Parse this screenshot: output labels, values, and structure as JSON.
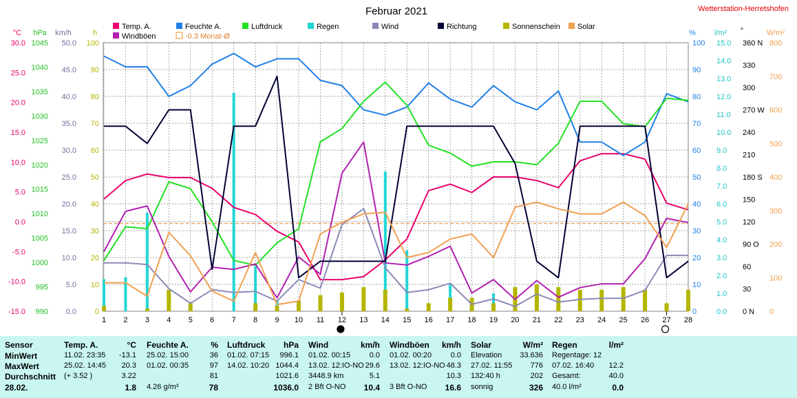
{
  "title": "Februar 2021",
  "station": "Wetterstation-Herretshofen",
  "legend": [
    {
      "label": "Temp. A.",
      "color": "#e8006c"
    },
    {
      "label": "Feuchte A.",
      "color": "#1f7fe6"
    },
    {
      "label": "Luftdruck",
      "color": "#22e022"
    },
    {
      "label": "Regen",
      "color": "#22d5d5"
    },
    {
      "label": "Wind",
      "color": "#8a8ab8"
    },
    {
      "label": "Richtung",
      "color": "#000033"
    },
    {
      "label": "Sonnenschein",
      "color": "#b5b500"
    },
    {
      "label": "Solar",
      "color": "#f0a050"
    },
    {
      "label": "Windböen",
      "color": "#b020b0"
    },
    {
      "label": "-0.3 Monat-Ø",
      "color": "#f0a050"
    }
  ],
  "units": {
    "temp": "°C",
    "pressure": "hPa",
    "wind": "km/h",
    "sun": "h",
    "humidity": "%",
    "rain": "l/m²",
    "direction": "°",
    "solar": "W/m²"
  },
  "chart_data": {
    "type": "line",
    "x": [
      1,
      2,
      3,
      4,
      5,
      6,
      7,
      8,
      9,
      10,
      11,
      12,
      13,
      14,
      15,
      16,
      17,
      18,
      19,
      20,
      21,
      22,
      23,
      24,
      25,
      26,
      27,
      28
    ],
    "axes": {
      "temp": {
        "range": [
          -15,
          30
        ],
        "ticks": [
          "30.0",
          "25.0",
          "20.0",
          "15.0",
          "10.0",
          "5.0",
          "0.0",
          "-5.0",
          "-10.0",
          "-15.0"
        ]
      },
      "pressure": {
        "range": [
          990,
          1045
        ],
        "ticks": [
          "1045",
          "1040",
          "1035",
          "1030",
          "1025",
          "1020",
          "1015",
          "1010",
          "1005",
          "1000",
          "995",
          "990"
        ]
      },
      "wind": {
        "range": [
          0,
          50
        ],
        "ticks": [
          "50.0",
          "45.0",
          "40.0",
          "35.0",
          "30.0",
          "25.0",
          "20.0",
          "15.0",
          "10.0",
          "5.0",
          "0.0"
        ]
      },
      "sun": {
        "range": [
          0,
          100
        ],
        "ticks": [
          "100",
          "90",
          "80",
          "70",
          "60",
          "50",
          "40",
          "30",
          "20",
          "10",
          "0"
        ]
      },
      "humidity": {
        "range": [
          0,
          100
        ],
        "ticks": [
          "100",
          "90",
          "80",
          "70",
          "60",
          "50",
          "40",
          "30",
          "20",
          "10",
          "0"
        ]
      },
      "rain": {
        "range": [
          0,
          15
        ],
        "ticks": [
          "15.0",
          "14.0",
          "13.0",
          "12.0",
          "11.0",
          "10.0",
          "9.0",
          "8.0",
          "7.0",
          "6.0",
          "5.0",
          "4.0",
          "3.0",
          "2.0",
          "1.0",
          "0.0"
        ]
      },
      "direction": {
        "range": [
          0,
          360
        ],
        "ticks": [
          "360 N",
          "330",
          "300",
          "270 W",
          "240",
          "210",
          "180 S",
          "150",
          "120",
          "90 O",
          "60",
          "30",
          "0 N"
        ]
      },
      "solar": {
        "range": [
          0,
          800
        ],
        "ticks": [
          "800",
          "700",
          "600",
          "500",
          "400",
          "300",
          "200",
          "100",
          "0"
        ]
      }
    },
    "series": [
      {
        "name": "Temp. A.",
        "axis": "temp",
        "color": "#e8006c",
        "values": [
          3.8,
          6.9,
          8.0,
          7.4,
          7.4,
          5.6,
          2.4,
          1.2,
          -1.6,
          -3.4,
          -9.7,
          -9.7,
          -9.2,
          -6.4,
          -2.9,
          5.2,
          6.3,
          4.9,
          7.5,
          7.5,
          6.9,
          5.7,
          10.2,
          11.4,
          11.4,
          10.5,
          3.1,
          2.0
        ]
      },
      {
        "name": "Feuchte A.",
        "axis": "humidity",
        "color": "#1f7fe6",
        "values": [
          95,
          91,
          91,
          80,
          84,
          92,
          96,
          91,
          94,
          94,
          86,
          84,
          75,
          73,
          76,
          85,
          79,
          76,
          84,
          78,
          75,
          82,
          63,
          63,
          58,
          63,
          81,
          78
        ]
      },
      {
        "name": "Luftdruck",
        "axis": "pressure",
        "color": "#22e022",
        "values": [
          1000.4,
          1007.3,
          1006.9,
          1016.5,
          1015.1,
          1008.3,
          1000.4,
          999.4,
          1004.0,
          1006.9,
          1024.7,
          1027.4,
          1033.0,
          1036.9,
          1032.2,
          1024.0,
          1022.4,
          1019.7,
          1020.6,
          1020.6,
          1020.0,
          1024.4,
          1033.0,
          1033.0,
          1028.4,
          1027.8,
          1033.6,
          1033.2
        ]
      },
      {
        "name": "Wind",
        "axis": "wind",
        "color": "#8a8ab8",
        "values": [
          9.0,
          9.0,
          8.7,
          4.2,
          1.5,
          4.0,
          3.5,
          3.7,
          1.9,
          5.9,
          4.3,
          16.1,
          19.1,
          8.1,
          3.5,
          4.0,
          5.2,
          1.3,
          2.3,
          0.9,
          3.2,
          1.7,
          2.2,
          2.4,
          2.4,
          3.9,
          10.4,
          10.4
        ]
      },
      {
        "name": "Windböen",
        "axis": "wind",
        "color": "#b020b0",
        "values": [
          11.1,
          18.6,
          19.6,
          10.2,
          3.6,
          8.2,
          7.8,
          8.8,
          2.5,
          10.1,
          6.9,
          25.7,
          31.5,
          9.0,
          8.6,
          10.2,
          12.1,
          3.4,
          5.9,
          2.2,
          5.7,
          2.6,
          4.4,
          5.1,
          5.1,
          9.8,
          17.3,
          16.5
        ]
      },
      {
        "name": "Richtung",
        "axis": "direction",
        "color": "#000033",
        "values": [
          248,
          248,
          225,
          270,
          270,
          56,
          248,
          248,
          315,
          45,
          67,
          67,
          67,
          67,
          248,
          248,
          248,
          248,
          248,
          198,
          67,
          45,
          248,
          248,
          248,
          248,
          45,
          67
        ]
      },
      {
        "name": "Solar",
        "axis": "solar",
        "color": "#f0a050",
        "values": [
          85,
          85,
          45,
          235,
          165,
          60,
          30,
          175,
          20,
          30,
          230,
          265,
          290,
          295,
          160,
          175,
          215,
          230,
          160,
          310,
          325,
          305,
          290,
          290,
          325,
          285,
          190,
          320
        ]
      },
      {
        "name": "Regen",
        "axis": "rain",
        "type": "bar",
        "color": "#22d5d5",
        "values": [
          1.8,
          1.9,
          5.5,
          0,
          0.3,
          0,
          12.2,
          2.5,
          0.6,
          0.6,
          0,
          0.7,
          0,
          7.8,
          3.4,
          0,
          1.5,
          0,
          1.0,
          0,
          0,
          0,
          0,
          0,
          0,
          0.4,
          0,
          0
        ]
      },
      {
        "name": "Sonnenschein",
        "axis": "sun",
        "type": "bar",
        "color": "#b5b500",
        "values": [
          2,
          0,
          1,
          8,
          3,
          0,
          0,
          3,
          2,
          4,
          6,
          7,
          9,
          8,
          1,
          3,
          5,
          5,
          3,
          9,
          10,
          9,
          8,
          8,
          9,
          8,
          3,
          8
        ]
      }
    ],
    "month_avg_line": {
      "axis": "temp",
      "value": -0.3,
      "color": "#f0a050",
      "label": "-0.3 Monat-Ø"
    },
    "moon_markers": [
      {
        "x": 12,
        "phase": "new"
      },
      {
        "x": 27,
        "phase": "full"
      }
    ]
  },
  "stats": {
    "sensor": {
      "header": "Sensor",
      "rows": [
        "MinWert",
        "MaxWert",
        "Durchschnitt",
        "28.02."
      ]
    },
    "temp": {
      "header": "Temp. A.",
      "unit": "°C",
      "rows": [
        [
          "11.02.  23:35",
          "-13.1"
        ],
        [
          "25.02.  14:45",
          "20.3"
        ],
        [
          "(+ 3.52 )",
          "3.22"
        ],
        [
          "",
          "1.8"
        ]
      ]
    },
    "humidity": {
      "header": "Feuchte A.",
      "unit": "%",
      "rows": [
        [
          "25.02.  15:00",
          "36"
        ],
        [
          "01.02.  00:35",
          "97"
        ],
        [
          "",
          "81"
        ],
        [
          "4.26 g/m³",
          "78"
        ]
      ]
    },
    "pressure": {
      "header": "Luftdruck",
      "unit": "hPa",
      "rows": [
        [
          "01.02.  07:15",
          "996.1"
        ],
        [
          "14.02.  10:20",
          "1044.4"
        ],
        [
          "",
          "1021.6"
        ],
        [
          "",
          "1036.0"
        ]
      ]
    },
    "wind": {
      "header": "Wind",
      "unit": "km/h",
      "rows": [
        [
          "01.02.  00:15",
          "0.0"
        ],
        [
          "13.02.  12:IO-NO",
          "29.6"
        ],
        [
          "3448.9 km",
          "5.1"
        ],
        [
          "2 Bft O-NO",
          "10.4"
        ]
      ]
    },
    "gusts": {
      "header": "Windböen",
      "unit": "km/h",
      "rows": [
        [
          "01.02.  00:20",
          "0.0"
        ],
        [
          "13.02.  12:IO-NO",
          "48.3"
        ],
        [
          "",
          "10.3"
        ],
        [
          "3 Bft O-NO",
          "16.6"
        ]
      ]
    },
    "solar": {
      "header": "Solar",
      "unit": "W/m²",
      "rows": [
        [
          "Elevation",
          "33.636"
        ],
        [
          "27.02.  11:55",
          "776"
        ],
        [
          "132:40 h",
          "202"
        ],
        [
          "sonnig",
          "326"
        ]
      ]
    },
    "rain": {
      "header": "Regen",
      "unit": "l/m²",
      "rows": [
        [
          "Regentage: 12",
          ""
        ],
        [
          "07.02.  16:40",
          "12.2"
        ],
        [
          "Gesamt:",
          "40.0"
        ],
        [
          "40.0 l/m²",
          "0.0"
        ]
      ]
    }
  }
}
